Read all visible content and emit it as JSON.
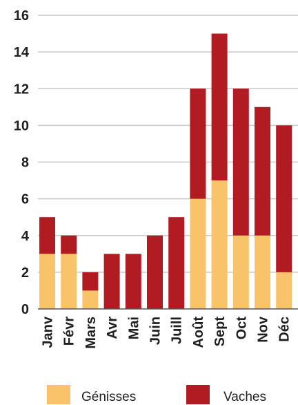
{
  "chart_data": {
    "type": "bar",
    "stacked": true,
    "categories": [
      "Janv",
      "Févr",
      "Mars",
      "Avr",
      "Mai",
      "Juin",
      "Juill",
      "Août",
      "Sept",
      "Oct",
      "Nov",
      "Déc"
    ],
    "series": [
      {
        "name": "Génisses",
        "color": "#f9c36a",
        "values": [
          3,
          3,
          1,
          0,
          0,
          0,
          0,
          6,
          7,
          4,
          4,
          2
        ]
      },
      {
        "name": "Vaches",
        "color": "#b01c22",
        "values": [
          2,
          1,
          1,
          3,
          3,
          4,
          5,
          6,
          8,
          8,
          7,
          8
        ]
      }
    ],
    "yticks": [
      0,
      2,
      4,
      6,
      8,
      10,
      12,
      14,
      16
    ],
    "ylim": [
      0,
      16
    ],
    "grid": true,
    "legend_position": "bottom"
  }
}
